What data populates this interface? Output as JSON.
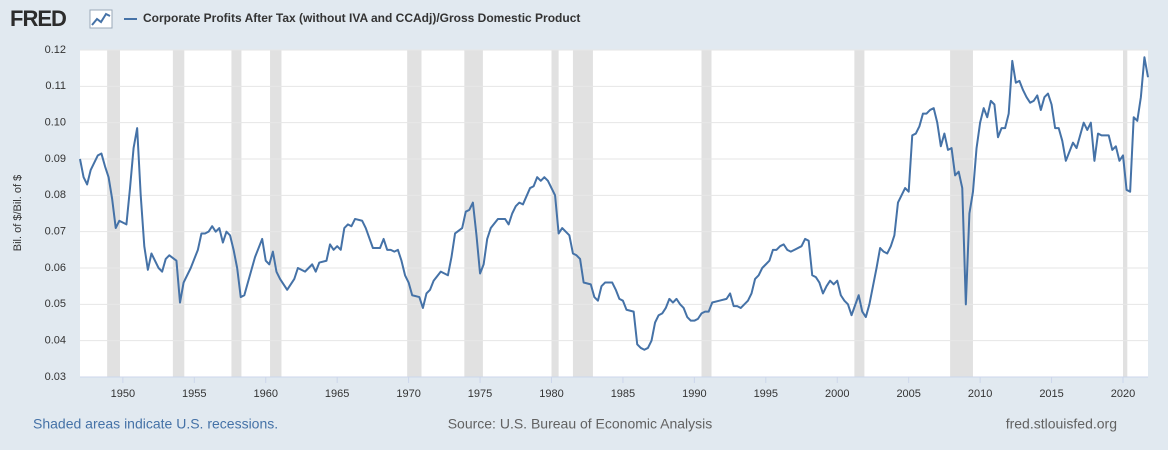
{
  "header": {
    "logo": "FRED"
  },
  "chart_data": {
    "type": "line",
    "y_label": "Bil. of $/Bil. of $",
    "xlim": [
      1947,
      2021.75
    ],
    "ylim": [
      0.03,
      0.12
    ],
    "xticks": [
      1950,
      1955,
      1960,
      1965,
      1970,
      1975,
      1980,
      1985,
      1990,
      1995,
      2000,
      2005,
      2010,
      2015,
      2020
    ],
    "yticks": [
      0.03,
      0.04,
      0.05,
      0.06,
      0.07,
      0.08,
      0.09,
      {
        "value": 0.1,
        "label": "0.10"
      },
      0.11,
      0.12
    ],
    "grid": true,
    "recession_color": "#e1e1e1",
    "recessions": [
      [
        1948.9,
        1949.8
      ],
      [
        1953.5,
        1954.3
      ],
      [
        1957.6,
        1958.3
      ],
      [
        1960.3,
        1961.1
      ],
      [
        1969.9,
        1970.9
      ],
      [
        1973.9,
        1975.2
      ],
      [
        1980.0,
        1980.5
      ],
      [
        1981.5,
        1982.9
      ],
      [
        1990.5,
        1991.2
      ],
      [
        2001.2,
        2001.9
      ],
      [
        2007.9,
        2009.5
      ],
      [
        2020.0,
        2020.3
      ]
    ],
    "x": [
      1947,
      1947.25,
      1947.5,
      1947.75,
      1948.25,
      1948.5,
      1948.75,
      1949,
      1949.25,
      1949.5,
      1949.75,
      1950.25,
      1950.5,
      1950.75,
      1951,
      1951.25,
      1951.5,
      1951.75,
      1952,
      1952.5,
      1952.75,
      1953,
      1953.25,
      1953.75,
      1954,
      1954.25,
      1954.75,
      1955.25,
      1955.5,
      1955.75,
      1956,
      1956.25,
      1956.5,
      1956.75,
      1957,
      1957.25,
      1957.5,
      1957.75,
      1958,
      1958.25,
      1958.5,
      1958.75,
      1959.25,
      1959.75,
      1960,
      1960.25,
      1960.5,
      1960.75,
      1961,
      1961.5,
      1962,
      1962.25,
      1962.75,
      1963,
      1963.25,
      1963.5,
      1963.75,
      1964.25,
      1964.5,
      1964.75,
      1965,
      1965.25,
      1965.5,
      1965.75,
      1966,
      1966.25,
      1966.75,
      1967,
      1967.5,
      1968,
      1968.25,
      1968.5,
      1968.75,
      1969,
      1969.25,
      1969.5,
      1969.75,
      1970,
      1970.25,
      1970.75,
      1971,
      1971.25,
      1971.5,
      1971.75,
      1972.25,
      1972.75,
      1973,
      1973.25,
      1973.75,
      1974,
      1974.25,
      1974.5,
      1974.75,
      1975,
      1975.25,
      1975.5,
      1975.75,
      1976.25,
      1976.75,
      1977,
      1977.25,
      1977.5,
      1977.75,
      1978,
      1978.5,
      1978.75,
      1979,
      1979.25,
      1979.5,
      1979.75,
      1980.25,
      1980.5,
      1980.75,
      1981.25,
      1981.5,
      1981.75,
      1982,
      1982.25,
      1982.75,
      1983,
      1983.25,
      1983.5,
      1983.75,
      1984.25,
      1984.5,
      1984.75,
      1985,
      1985.25,
      1985.75,
      1986,
      1986.25,
      1986.5,
      1986.75,
      1987,
      1987.25,
      1987.5,
      1987.75,
      1988,
      1988.25,
      1988.5,
      1988.75,
      1989,
      1989.25,
      1989.5,
      1989.75,
      1990,
      1990.25,
      1990.5,
      1990.75,
      1991,
      1991.25,
      1991.75,
      1992.25,
      1992.5,
      1992.75,
      1993,
      1993.25,
      1993.75,
      1994,
      1994.25,
      1994.5,
      1994.75,
      1995,
      1995.25,
      1995.5,
      1995.75,
      1996,
      1996.25,
      1996.5,
      1996.75,
      1997,
      1997.5,
      1997.75,
      1998,
      1998.25,
      1998.5,
      1998.75,
      1999,
      1999.25,
      1999.5,
      1999.75,
      2000,
      2000.25,
      2000.5,
      2000.75,
      2001,
      2001.5,
      2001.75,
      2002,
      2002.25,
      2002.5,
      2002.75,
      2003,
      2003.25,
      2003.5,
      2003.75,
      2004,
      2004.25,
      2004.5,
      2004.75,
      2005,
      2005.25,
      2005.5,
      2005.75,
      2006,
      2006.25,
      2006.5,
      2006.75,
      2007,
      2007.25,
      2007.5,
      2007.75,
      2008,
      2008.25,
      2008.5,
      2008.75,
      2009,
      2009.25,
      2009.5,
      2009.75,
      2010,
      2010.25,
      2010.5,
      2010.75,
      2011,
      2011.25,
      2011.5,
      2011.75,
      2012,
      2012.25,
      2012.5,
      2012.75,
      2013,
      2013.25,
      2013.5,
      2013.75,
      2014,
      2014.25,
      2014.5,
      2014.75,
      2015,
      2015.25,
      2015.5,
      2015.75,
      2016,
      2016.25,
      2016.5,
      2016.75,
      2017,
      2017.25,
      2017.5,
      2017.75,
      2018,
      2018.25,
      2018.5,
      2018.75,
      2019,
      2019.25,
      2019.5,
      2019.75,
      2020,
      2020.25,
      2020.5,
      2020.75,
      2021,
      2021.25,
      2021.5,
      2021.75
    ],
    "series": [
      {
        "name": "Corporate Profits After Tax (without IVA and CCAdj)/Gross Domestic Product",
        "color": "#4572a7",
        "values": [
          0.09,
          0.085,
          0.083,
          0.087,
          0.091,
          0.0915,
          0.088,
          0.085,
          0.079,
          0.071,
          0.073,
          0.072,
          0.082,
          0.093,
          0.0985,
          0.08,
          0.066,
          0.0595,
          0.064,
          0.06,
          0.059,
          0.0625,
          0.0635,
          0.062,
          0.0505,
          0.056,
          0.06,
          0.065,
          0.0695,
          0.0695,
          0.07,
          0.0715,
          0.07,
          0.071,
          0.067,
          0.07,
          0.069,
          0.065,
          0.06,
          0.052,
          0.0525,
          0.056,
          0.063,
          0.068,
          0.062,
          0.061,
          0.0645,
          0.059,
          0.057,
          0.054,
          0.057,
          0.06,
          0.059,
          0.06,
          0.061,
          0.059,
          0.0615,
          0.062,
          0.0665,
          0.065,
          0.066,
          0.065,
          0.071,
          0.072,
          0.0715,
          0.0735,
          0.073,
          0.071,
          0.0655,
          0.0655,
          0.068,
          0.065,
          0.065,
          0.0645,
          0.065,
          0.062,
          0.058,
          0.056,
          0.0525,
          0.052,
          0.049,
          0.053,
          0.054,
          0.0565,
          0.059,
          0.058,
          0.063,
          0.0695,
          0.071,
          0.0755,
          0.076,
          0.078,
          0.069,
          0.0585,
          0.061,
          0.068,
          0.071,
          0.0735,
          0.0735,
          0.072,
          0.075,
          0.077,
          0.078,
          0.0775,
          0.082,
          0.0825,
          0.085,
          0.084,
          0.085,
          0.084,
          0.08,
          0.0695,
          0.071,
          0.069,
          0.064,
          0.0635,
          0.0625,
          0.056,
          0.0555,
          0.052,
          0.051,
          0.055,
          0.056,
          0.056,
          0.054,
          0.0515,
          0.051,
          0.0485,
          0.048,
          0.039,
          0.038,
          0.0375,
          0.038,
          0.04,
          0.045,
          0.047,
          0.0475,
          0.049,
          0.0515,
          0.0505,
          0.0515,
          0.05,
          0.049,
          0.0465,
          0.0455,
          0.0455,
          0.046,
          0.0475,
          0.048,
          0.048,
          0.0505,
          0.051,
          0.0515,
          0.053,
          0.0495,
          0.0495,
          0.049,
          0.051,
          0.053,
          0.057,
          0.058,
          0.06,
          0.061,
          0.062,
          0.065,
          0.065,
          0.066,
          0.0665,
          0.065,
          0.0645,
          0.065,
          0.066,
          0.068,
          0.0675,
          0.058,
          0.0575,
          0.056,
          0.053,
          0.055,
          0.0565,
          0.0555,
          0.0565,
          0.0525,
          0.051,
          0.05,
          0.047,
          0.0525,
          0.048,
          0.0465,
          0.05,
          0.055,
          0.06,
          0.0655,
          0.0645,
          0.064,
          0.066,
          0.069,
          0.078,
          0.08,
          0.082,
          0.081,
          0.0965,
          0.097,
          0.099,
          0.1025,
          0.1025,
          0.1035,
          0.104,
          0.1,
          0.0935,
          0.097,
          0.0925,
          0.093,
          0.0855,
          0.0865,
          0.082,
          0.05,
          0.075,
          0.081,
          0.093,
          0.1,
          0.104,
          0.1015,
          0.106,
          0.105,
          0.096,
          0.0985,
          0.0985,
          0.1025,
          0.117,
          0.111,
          0.1115,
          0.109,
          0.107,
          0.1055,
          0.106,
          0.1075,
          0.1035,
          0.107,
          0.108,
          0.105,
          0.0985,
          0.0985,
          0.095,
          0.0895,
          0.092,
          0.0945,
          0.093,
          0.0965,
          0.1,
          0.098,
          0.1,
          0.0895,
          0.097,
          0.0965,
          0.0965,
          0.0965,
          0.0925,
          0.0935,
          0.0895,
          0.091,
          0.0815,
          0.081,
          0.1015,
          0.1005,
          0.107,
          0.118,
          0.1125
        ]
      }
    ]
  },
  "footer": {
    "note": "Shaded areas indicate U.S. recessions.",
    "source": "Source: U.S. Bureau of Economic Analysis",
    "site": "fred.stlouisfed.org"
  }
}
